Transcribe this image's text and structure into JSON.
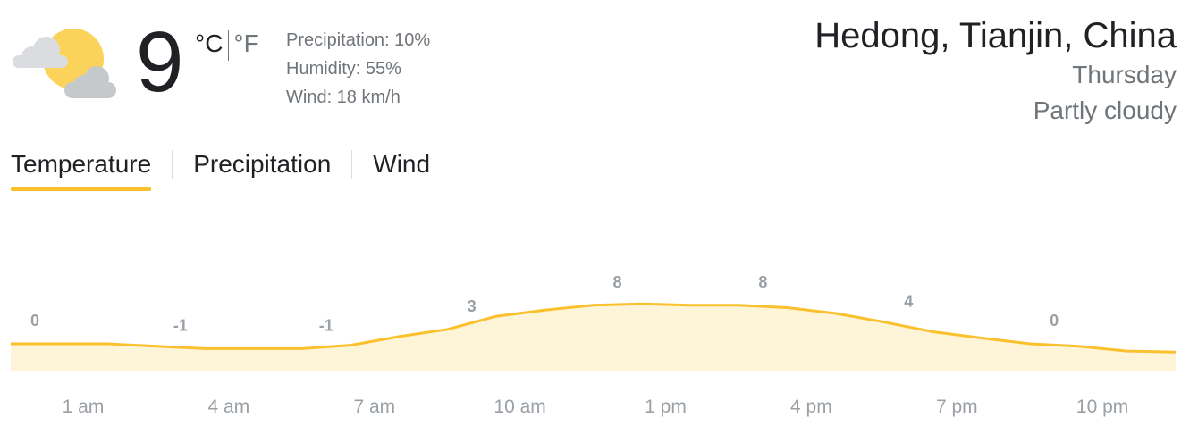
{
  "current": {
    "condition_icon": "partly-cloudy-icon",
    "temperature": "9",
    "unit_celsius": "°C",
    "unit_fahrenheit": "°F",
    "active_unit": "°C"
  },
  "details": {
    "precipitation": "Precipitation: 10%",
    "humidity": "Humidity: 55%",
    "wind": "Wind: 18 km/h"
  },
  "location": {
    "name": "Hedong, Tianjin, China",
    "day": "Thursday",
    "condition": "Partly cloudy"
  },
  "tabs": [
    {
      "label": "Temperature",
      "active": true
    },
    {
      "label": "Precipitation",
      "active": false
    },
    {
      "label": "Wind",
      "active": false
    }
  ],
  "colors": {
    "accent": "#fbc02d",
    "chart_fill": "#fef5d8",
    "label_gray": "#9aa0a6"
  },
  "chart_data": {
    "type": "area",
    "x": [
      "1 am",
      "4 am",
      "7 am",
      "10 am",
      "1 pm",
      "4 pm",
      "7 pm",
      "10 pm"
    ],
    "values": [
      0,
      -1,
      -1,
      3,
      8,
      8,
      4,
      0
    ],
    "labels": [
      "0",
      "-1",
      "-1",
      "3",
      "8",
      "8",
      "4",
      "0"
    ],
    "curve": [
      0,
      0,
      0,
      -0.5,
      -1,
      -1,
      -1,
      -0.3,
      1.5,
      3,
      5.7,
      7,
      8,
      8.3,
      8,
      8,
      7.5,
      6.3,
      4.5,
      2.5,
      1.2,
      0,
      -0.5,
      -1.5,
      -1.7
    ],
    "unit": "°C"
  }
}
